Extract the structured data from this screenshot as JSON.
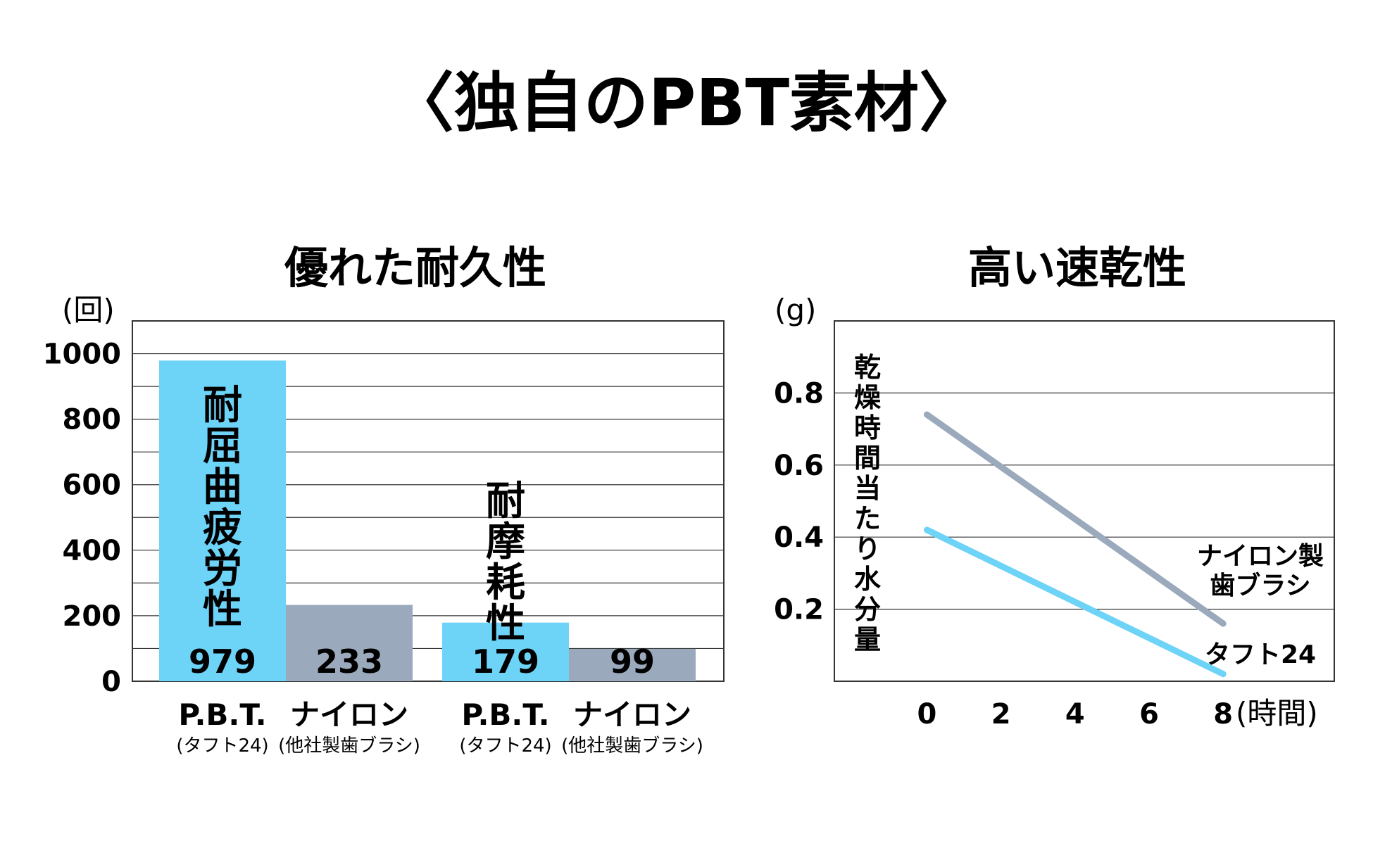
{
  "title": "〈独自のPBT素材〉",
  "chart_data": [
    {
      "type": "bar",
      "title": "優れた耐久性",
      "unit_label": "(回)",
      "ylim": [
        0,
        1100
      ],
      "y_ticks": [
        "0",
        "200",
        "400",
        "600",
        "800",
        "1000"
      ],
      "grid": true,
      "groups": [
        {
          "label": "耐屈曲疲労性",
          "bars": [
            {
              "name": "P.B.T.",
              "sub": "(タフト24)",
              "value": 979,
              "value_label": "979",
              "color": "#6dd3f7"
            },
            {
              "name": "ナイロン",
              "sub": "(他社製歯ブラシ)",
              "value": 233,
              "value_label": "233",
              "color": "#9aa9bc"
            }
          ]
        },
        {
          "label": "耐摩耗性",
          "bars": [
            {
              "name": "P.B.T.",
              "sub": "(タフト24)",
              "value": 179,
              "value_label": "179",
              "color": "#6dd3f7"
            },
            {
              "name": "ナイロン",
              "sub": "(他社製歯ブラシ)",
              "value": 99,
              "value_label": "99",
              "color": "#9aa9bc"
            }
          ]
        }
      ]
    },
    {
      "type": "line",
      "title": "高い速乾性",
      "unit_label": "(g)",
      "ylabel": "乾燥時間当たり水分量",
      "xlabel": "(時間)",
      "x_ticks": [
        "0",
        "2",
        "4",
        "6",
        "8"
      ],
      "y_ticks": [
        "0.2",
        "0.4",
        "0.6",
        "0.8"
      ],
      "xlim": [
        -2.5,
        11
      ],
      "ylim": [
        0,
        1.0
      ],
      "grid": true,
      "series": [
        {
          "name": "ナイロン製歯ブラシ",
          "label_lines": [
            "ナイロン製",
            "歯ブラシ"
          ],
          "color": "#9aa9bc",
          "x": [
            0,
            8
          ],
          "y": [
            0.74,
            0.16
          ]
        },
        {
          "name": "タフト24",
          "label_lines": [
            "タフト24"
          ],
          "color": "#6dd3f7",
          "x": [
            0,
            8
          ],
          "y": [
            0.42,
            0.02
          ]
        }
      ]
    }
  ]
}
